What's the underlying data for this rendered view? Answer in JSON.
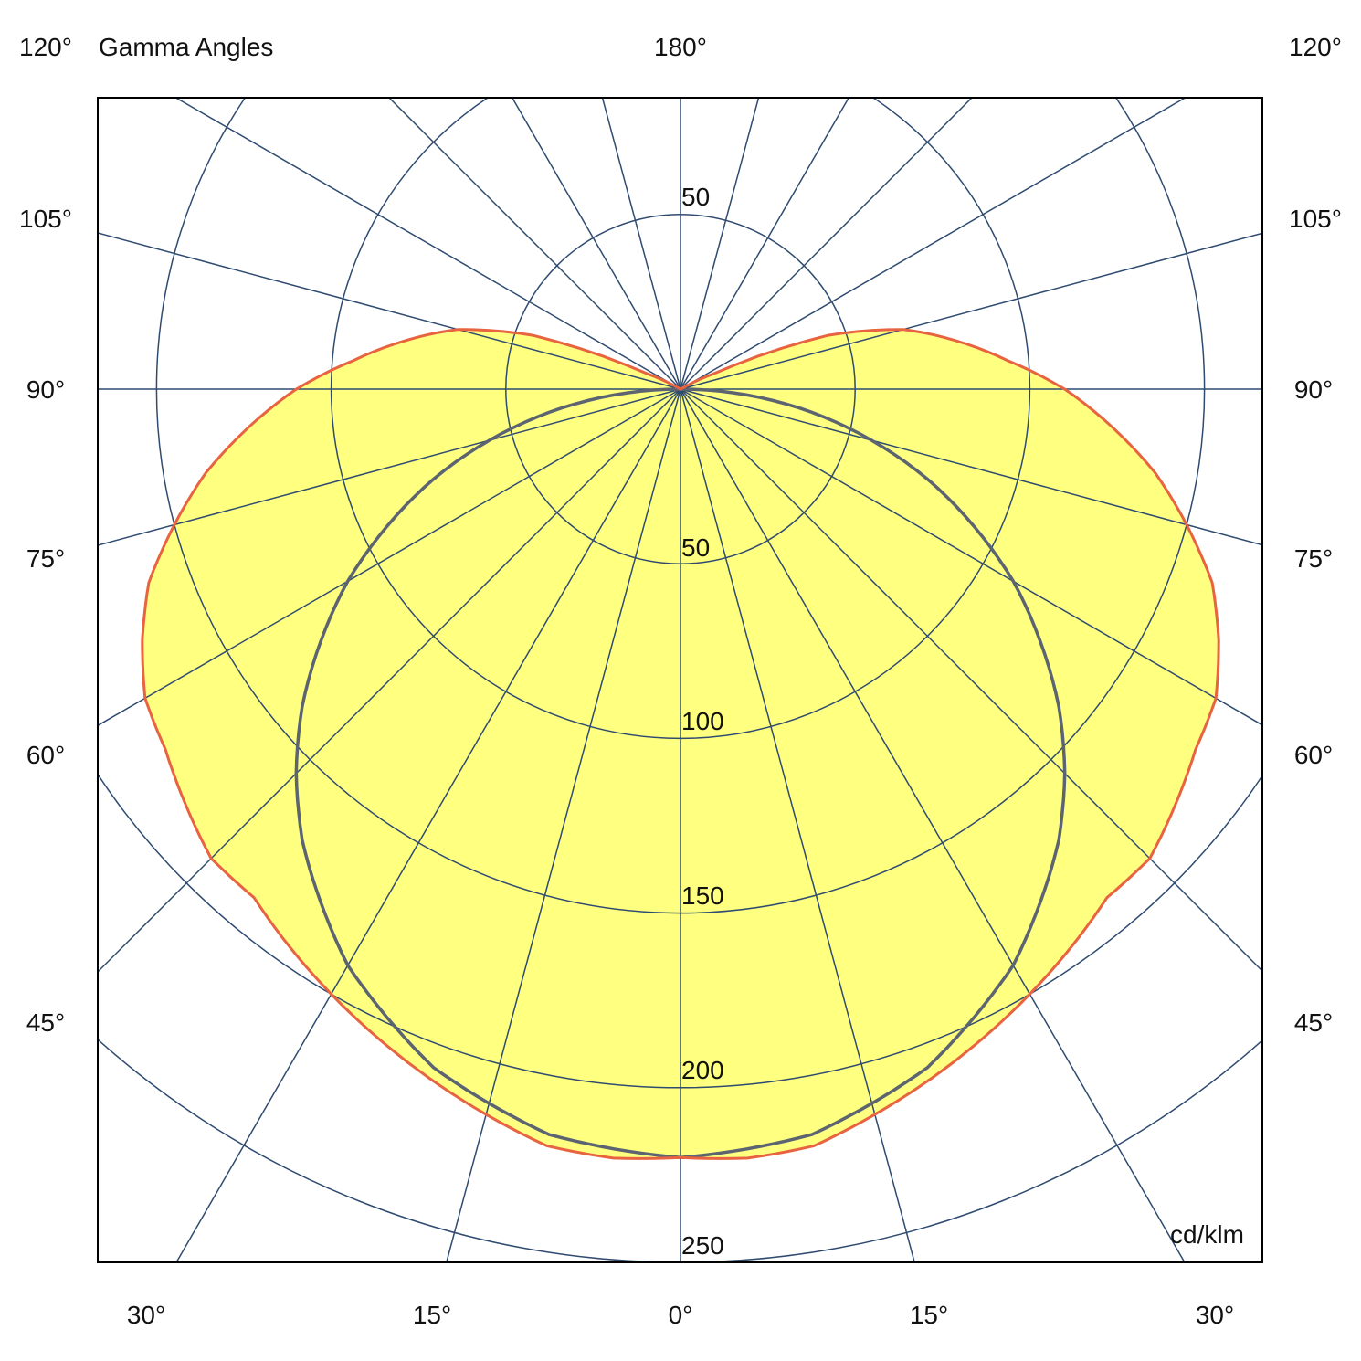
{
  "chart_data": {
    "type": "polar",
    "title": "Gamma Angles",
    "unit_label": "cd/klm",
    "radial_ticks": [
      50,
      100,
      150,
      200,
      250
    ],
    "radial_range": [
      0,
      250
    ],
    "angle_grid_step_deg": 15,
    "angle_labels": {
      "top": "180°",
      "left": [
        "120°",
        "105°",
        "90°",
        "75°",
        "60°",
        "45°"
      ],
      "right": [
        "120°",
        "105°",
        "90°",
        "75°",
        "60°",
        "45°"
      ],
      "bottom": [
        "30°",
        "15°",
        "0°",
        "15°",
        "30°"
      ]
    },
    "grid": true,
    "series": [
      {
        "plane": "C0-C180",
        "color": "#e8633f",
        "fill": "#ffff80",
        "gamma": [
          0,
          5,
          10,
          15,
          20,
          25,
          30,
          35,
          40,
          45,
          50,
          55,
          60,
          65,
          70,
          75,
          80,
          85,
          90,
          95,
          100,
          105,
          110,
          115,
          120,
          180
        ],
        "values": [
          220,
          221,
          220,
          215,
          210,
          205,
          200,
          195,
          190,
          190,
          185,
          180,
          177,
          170,
          162,
          150,
          138,
          124,
          110,
          94,
          80,
          66,
          45,
          10,
          0,
          0
        ]
      },
      {
        "plane": "C90-C270",
        "color": "#5b6470",
        "gamma": [
          0,
          10,
          20,
          30,
          40,
          45,
          50,
          60,
          70,
          80,
          90
        ],
        "values": [
          220,
          216.7,
          206.7,
          190.5,
          168.5,
          155.6,
          141.4,
          110,
          75.2,
          38.2,
          0
        ]
      }
    ]
  },
  "colors": {
    "grid": "#2f4b70",
    "frame": "#000000"
  }
}
